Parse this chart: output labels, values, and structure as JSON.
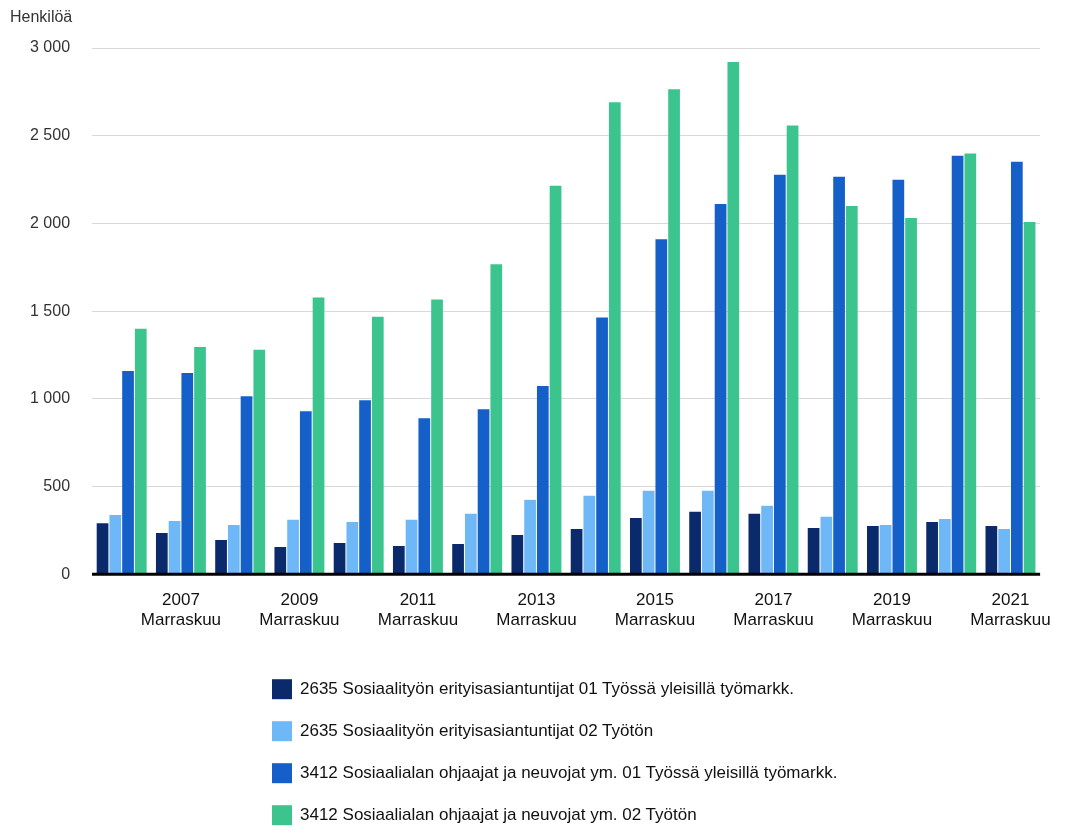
{
  "chart_data": {
    "type": "bar",
    "ylabel": "Henkilöä",
    "categories": [
      null,
      "2007\nMarraskuu",
      null,
      "2009\nMarraskuu",
      null,
      "2011\nMarraskuu",
      null,
      "2013\nMarraskuu",
      null,
      "2015\nMarraskuu",
      null,
      "2017\nMarraskuu",
      null,
      "2019\nMarraskuu",
      null,
      "2021\nMarraskuu"
    ],
    "series": [
      {
        "name": "2635 Sosiaalityön erityisasiantuntijat 01 Työssä yleisillä työmarkk.",
        "color": "#0b2a6b",
        "values": [
          290,
          235,
          195,
          155,
          178,
          161,
          172,
          224,
          258,
          321,
          356,
          344,
          264,
          275,
          298,
          275
        ]
      },
      {
        "name": "2635 Sosiaalityön erityisasiantuntijat 02 Työtön",
        "color": "#6fb8f7",
        "values": [
          338,
          304,
          281,
          310,
          298,
          310,
          344,
          424,
          447,
          476,
          476,
          390,
          327,
          281,
          315,
          258
        ]
      },
      {
        "name": "3412 Sosiaalialan ohjaajat ja neuvojat ym. 01 Työssä yleisillä työmarkk.",
        "color": "#1560c8",
        "values": [
          1159,
          1147,
          1015,
          929,
          992,
          889,
          941,
          1073,
          1463,
          1910,
          2111,
          2277,
          2266,
          2249,
          2386,
          2352
        ]
      },
      {
        "name": "3412 Sosiaalialan ohjaajat ja neuvojat ym. 02 Työtön",
        "color": "#3cc48f",
        "values": [
          1400,
          1296,
          1279,
          1577,
          1468,
          1566,
          1767,
          2214,
          2690,
          2765,
          2920,
          2558,
          2099,
          2031,
          2398,
          2008
        ]
      }
    ],
    "ylim": [
      0,
      3000
    ],
    "yticks": [
      {
        "value": 0,
        "label": "0"
      },
      {
        "value": 500,
        "label": "500"
      },
      {
        "value": 1000,
        "label": "1 000"
      },
      {
        "value": 1500,
        "label": "1 500"
      },
      {
        "value": 2000,
        "label": "2 000"
      },
      {
        "value": 2500,
        "label": "2 500"
      },
      {
        "value": 3000,
        "label": "3 000"
      }
    ],
    "grid": "y",
    "legend": "bottom"
  }
}
